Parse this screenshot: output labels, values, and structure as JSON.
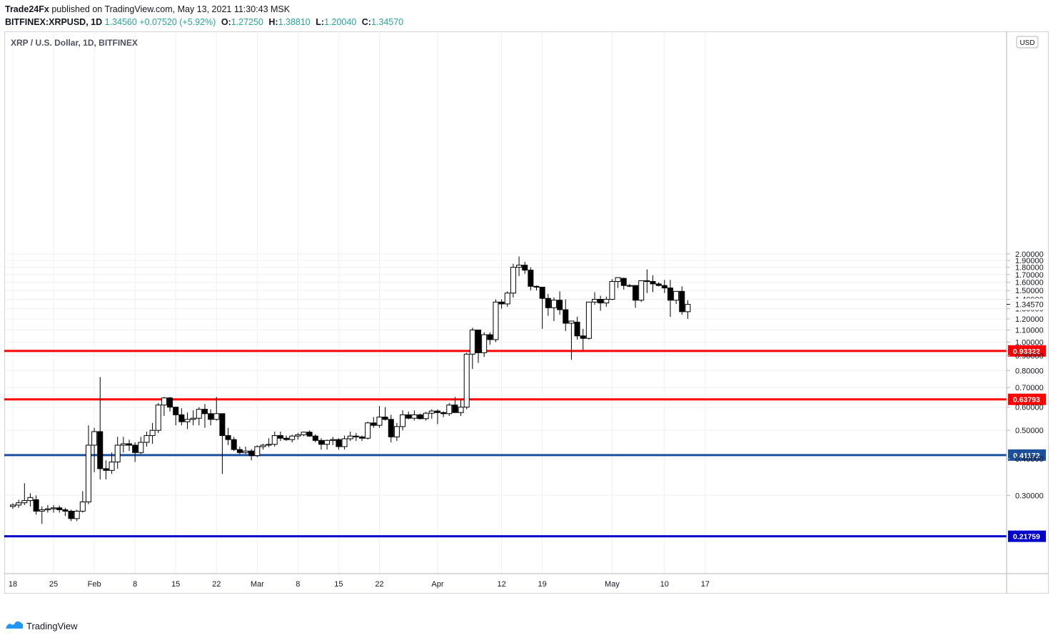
{
  "header": {
    "publisher": "Trade24Fx",
    "published_text": "published on TradingView.com, May 13, 2021 11:30:43 MSK",
    "symbol": "BITFINEX:XRPUSD, 1D",
    "last": "1.34560",
    "change": "+0.07520 (+5.92%)",
    "o_label": "O:",
    "o_value": "1.27250",
    "h_label": "H:",
    "h_value": "1.38810",
    "l_label": "L:",
    "l_value": "1.20040",
    "c_label": "C:",
    "c_value": "1.34570"
  },
  "legend_title": "XRP / U.S. Dollar, 1D, BITFINEX",
  "currency_badge": "USD",
  "footer_logo": "TradingView",
  "colors": {
    "support_red": "#ff0000",
    "support_blue": "#0000cc",
    "support_darkblue": "#1c4f9c",
    "candle_up_fill": "#ffffff",
    "candle_down_fill": "#000000",
    "grid": "#edf0f3",
    "axis_text": "#131722"
  },
  "chart_data": {
    "type": "candlestick",
    "title": "XRP / U.S. Dollar, 1D, BITFINEX",
    "ylim": [
      0.2,
      2.0
    ],
    "y_ticks": [
      "0.30000",
      "0.40000",
      "0.50000",
      "0.60000",
      "0.70000",
      "0.80000",
      "0.90000",
      "1.00000",
      "1.10000",
      "1.20000",
      "1.30000",
      "1.40000",
      "1.50000",
      "1.60000",
      "1.70000",
      "1.80000",
      "1.90000",
      "2.00000"
    ],
    "x_tick_labels": [
      {
        "label": "18",
        "day": 0
      },
      {
        "label": "25",
        "day": 7
      },
      {
        "label": "Feb",
        "day": 14
      },
      {
        "label": "8",
        "day": 21
      },
      {
        "label": "15",
        "day": 28
      },
      {
        "label": "22",
        "day": 35
      },
      {
        "label": "Mar",
        "day": 42
      },
      {
        "label": "8",
        "day": 49
      },
      {
        "label": "15",
        "day": 56
      },
      {
        "label": "22",
        "day": 63
      },
      {
        "label": "Apr",
        "day": 73
      },
      {
        "label": "12",
        "day": 84
      },
      {
        "label": "19",
        "day": 91
      },
      {
        "label": "May",
        "day": 103
      },
      {
        "label": "10",
        "day": 112
      },
      {
        "label": "17",
        "day": 119
      }
    ],
    "last_price_label": "1.34570",
    "horizontal_levels": [
      {
        "value": 0.93322,
        "label": "0.93322",
        "color": "#ff0000"
      },
      {
        "value": 0.63793,
        "label": "0.63793",
        "color": "#ff0000"
      },
      {
        "value": 0.41172,
        "label": "0.41172",
        "color": "#1c4f9c"
      },
      {
        "value": 0.21759,
        "label": "0.21759",
        "color": "#0000cc"
      }
    ],
    "ohlc": [
      [
        0.275,
        0.282,
        0.27,
        0.278
      ],
      [
        0.278,
        0.29,
        0.272,
        0.283
      ],
      [
        0.283,
        0.33,
        0.278,
        0.288
      ],
      [
        0.288,
        0.305,
        0.275,
        0.295
      ],
      [
        0.29,
        0.3,
        0.258,
        0.265
      ],
      [
        0.265,
        0.275,
        0.24,
        0.268
      ],
      [
        0.268,
        0.278,
        0.262,
        0.27
      ],
      [
        0.27,
        0.278,
        0.262,
        0.272
      ],
      [
        0.272,
        0.277,
        0.262,
        0.268
      ],
      [
        0.268,
        0.272,
        0.255,
        0.265
      ],
      [
        0.265,
        0.268,
        0.245,
        0.25
      ],
      [
        0.25,
        0.268,
        0.245,
        0.265
      ],
      [
        0.265,
        0.31,
        0.262,
        0.285
      ],
      [
        0.285,
        0.52,
        0.28,
        0.445
      ],
      [
        0.445,
        0.51,
        0.36,
        0.495
      ],
      [
        0.495,
        0.76,
        0.34,
        0.37
      ],
      [
        0.37,
        0.395,
        0.34,
        0.365
      ],
      [
        0.365,
        0.42,
        0.355,
        0.39
      ],
      [
        0.39,
        0.475,
        0.37,
        0.445
      ],
      [
        0.445,
        0.475,
        0.42,
        0.45
      ],
      [
        0.45,
        0.465,
        0.425,
        0.445
      ],
      [
        0.445,
        0.455,
        0.39,
        0.42
      ],
      [
        0.42,
        0.475,
        0.415,
        0.455
      ],
      [
        0.455,
        0.495,
        0.44,
        0.48
      ],
      [
        0.48,
        0.53,
        0.45,
        0.5
      ],
      [
        0.5,
        0.62,
        0.49,
        0.61
      ],
      [
        0.61,
        0.65,
        0.56,
        0.645
      ],
      [
        0.645,
        0.65,
        0.58,
        0.6
      ],
      [
        0.6,
        0.6,
        0.52,
        0.565
      ],
      [
        0.565,
        0.595,
        0.52,
        0.535
      ],
      [
        0.535,
        0.575,
        0.505,
        0.545
      ],
      [
        0.545,
        0.585,
        0.52,
        0.55
      ],
      [
        0.55,
        0.6,
        0.52,
        0.59
      ],
      [
        0.59,
        0.615,
        0.51,
        0.57
      ],
      [
        0.57,
        0.59,
        0.52,
        0.545
      ],
      [
        0.545,
        0.65,
        0.54,
        0.57
      ],
      [
        0.57,
        0.57,
        0.355,
        0.48
      ],
      [
        0.48,
        0.51,
        0.445,
        0.465
      ],
      [
        0.465,
        0.475,
        0.425,
        0.43
      ],
      [
        0.43,
        0.44,
        0.415,
        0.42
      ],
      [
        0.42,
        0.44,
        0.415,
        0.425
      ],
      [
        0.425,
        0.432,
        0.395,
        0.41
      ],
      [
        0.41,
        0.445,
        0.405,
        0.44
      ],
      [
        0.44,
        0.45,
        0.43,
        0.445
      ],
      [
        0.445,
        0.47,
        0.438,
        0.448
      ],
      [
        0.448,
        0.495,
        0.44,
        0.48
      ],
      [
        0.48,
        0.495,
        0.46,
        0.47
      ],
      [
        0.47,
        0.48,
        0.46,
        0.465
      ],
      [
        0.465,
        0.483,
        0.455,
        0.478
      ],
      [
        0.478,
        0.49,
        0.465,
        0.483
      ],
      [
        0.483,
        0.495,
        0.478,
        0.493
      ],
      [
        0.493,
        0.5,
        0.475,
        0.478
      ],
      [
        0.478,
        0.485,
        0.455,
        0.462
      ],
      [
        0.462,
        0.47,
        0.43,
        0.448
      ],
      [
        0.448,
        0.465,
        0.43,
        0.462
      ],
      [
        0.462,
        0.475,
        0.445,
        0.465
      ],
      [
        0.465,
        0.47,
        0.43,
        0.44
      ],
      [
        0.44,
        0.48,
        0.43,
        0.468
      ],
      [
        0.468,
        0.495,
        0.46,
        0.478
      ],
      [
        0.478,
        0.49,
        0.46,
        0.475
      ],
      [
        0.475,
        0.48,
        0.46,
        0.47
      ],
      [
        0.47,
        0.535,
        0.465,
        0.53
      ],
      [
        0.53,
        0.555,
        0.51,
        0.52
      ],
      [
        0.52,
        0.605,
        0.51,
        0.555
      ],
      [
        0.555,
        0.6,
        0.54,
        0.545
      ],
      [
        0.545,
        0.565,
        0.455,
        0.475
      ],
      [
        0.475,
        0.53,
        0.46,
        0.515
      ],
      [
        0.515,
        0.585,
        0.5,
        0.565
      ],
      [
        0.565,
        0.58,
        0.545,
        0.55
      ],
      [
        0.55,
        0.585,
        0.54,
        0.565
      ],
      [
        0.565,
        0.57,
        0.545,
        0.548
      ],
      [
        0.548,
        0.578,
        0.54,
        0.572
      ],
      [
        0.572,
        0.59,
        0.548,
        0.582
      ],
      [
        0.582,
        0.59,
        0.525,
        0.575
      ],
      [
        0.575,
        0.58,
        0.555,
        0.57
      ],
      [
        0.57,
        0.62,
        0.56,
        0.61
      ],
      [
        0.61,
        0.65,
        0.58,
        0.575
      ],
      [
        0.575,
        0.64,
        0.56,
        0.6
      ],
      [
        0.6,
        0.92,
        0.59,
        0.91
      ],
      [
        0.91,
        1.12,
        0.81,
        1.1
      ],
      [
        1.1,
        1.1,
        0.85,
        0.92
      ],
      [
        0.92,
        1.08,
        0.89,
        1.06
      ],
      [
        1.06,
        1.08,
        0.98,
        1.02
      ],
      [
        1.02,
        1.4,
        1.0,
        1.37
      ],
      [
        1.37,
        1.4,
        1.3,
        1.35
      ],
      [
        1.35,
        1.49,
        1.32,
        1.47
      ],
      [
        1.47,
        1.85,
        1.42,
        1.8
      ],
      [
        1.8,
        1.96,
        1.68,
        1.83
      ],
      [
        1.83,
        1.88,
        1.71,
        1.76
      ],
      [
        1.76,
        1.8,
        1.5,
        1.55
      ],
      [
        1.55,
        1.56,
        1.5,
        1.54
      ],
      [
        1.54,
        1.54,
        1.11,
        1.41
      ],
      [
        1.41,
        1.46,
        1.23,
        1.31
      ],
      [
        1.31,
        1.42,
        1.18,
        1.39
      ],
      [
        1.39,
        1.49,
        1.24,
        1.29
      ],
      [
        1.29,
        1.4,
        1.09,
        1.16
      ],
      [
        1.16,
        1.18,
        0.87,
        1.18
      ],
      [
        1.17,
        1.22,
        1.02,
        1.05
      ],
      [
        1.05,
        1.11,
        0.94,
        1.03
      ],
      [
        1.03,
        1.37,
        1.02,
        1.37
      ],
      [
        1.37,
        1.48,
        1.34,
        1.4
      ],
      [
        1.4,
        1.44,
        1.28,
        1.36
      ],
      [
        1.36,
        1.43,
        1.32,
        1.4
      ],
      [
        1.4,
        1.64,
        1.39,
        1.61
      ],
      [
        1.61,
        1.66,
        1.53,
        1.66
      ],
      [
        1.65,
        1.66,
        1.51,
        1.56
      ],
      [
        1.56,
        1.58,
        1.54,
        1.56
      ],
      [
        1.56,
        1.56,
        1.31,
        1.39
      ],
      [
        1.39,
        1.62,
        1.37,
        1.62
      ],
      [
        1.62,
        1.77,
        1.47,
        1.61
      ],
      [
        1.61,
        1.69,
        1.48,
        1.58
      ],
      [
        1.58,
        1.6,
        1.55,
        1.56
      ],
      [
        1.56,
        1.63,
        1.47,
        1.53
      ],
      [
        1.53,
        1.63,
        1.22,
        1.39
      ],
      [
        1.39,
        1.49,
        1.35,
        1.49
      ],
      [
        1.49,
        1.55,
        1.24,
        1.27
      ],
      [
        1.27,
        1.39,
        1.2,
        1.345
      ]
    ]
  }
}
